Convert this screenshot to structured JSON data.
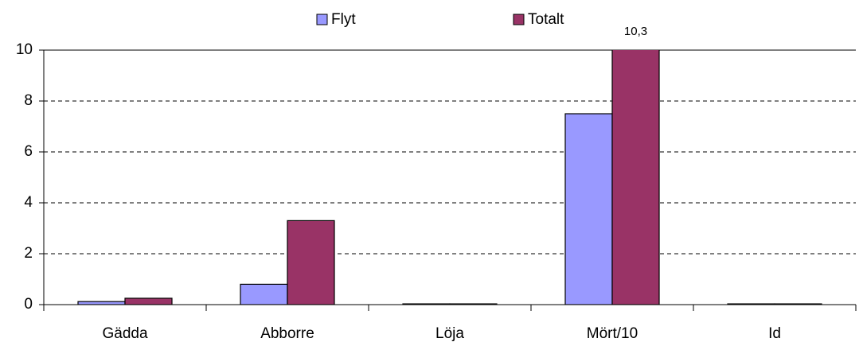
{
  "chart_data": {
    "type": "bar",
    "categories": [
      "Gädda",
      "Abborre",
      "Löja",
      "Mört/10",
      "Id"
    ],
    "series": [
      {
        "name": "Flyt",
        "color": "#9999ff",
        "values": [
          0.12,
          0.8,
          0.03,
          7.5,
          0.03
        ]
      },
      {
        "name": "Totalt",
        "color": "#993366",
        "values": [
          0.25,
          3.3,
          0.03,
          10.3,
          0.03
        ],
        "value_labels": [
          null,
          null,
          null,
          "10,3",
          null
        ]
      }
    ],
    "ylim": [
      0,
      10
    ],
    "yticks": [
      0,
      2,
      4,
      6,
      8,
      10
    ],
    "grid": true
  }
}
